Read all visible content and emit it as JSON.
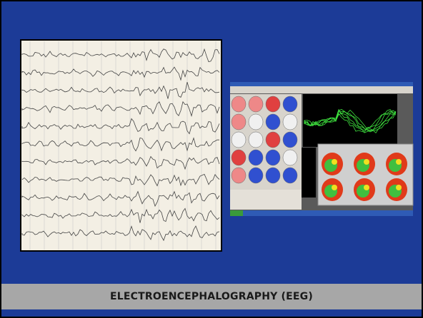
{
  "caption": "ELECTROENCEPHALOGRAPHY (EEG)"
}
